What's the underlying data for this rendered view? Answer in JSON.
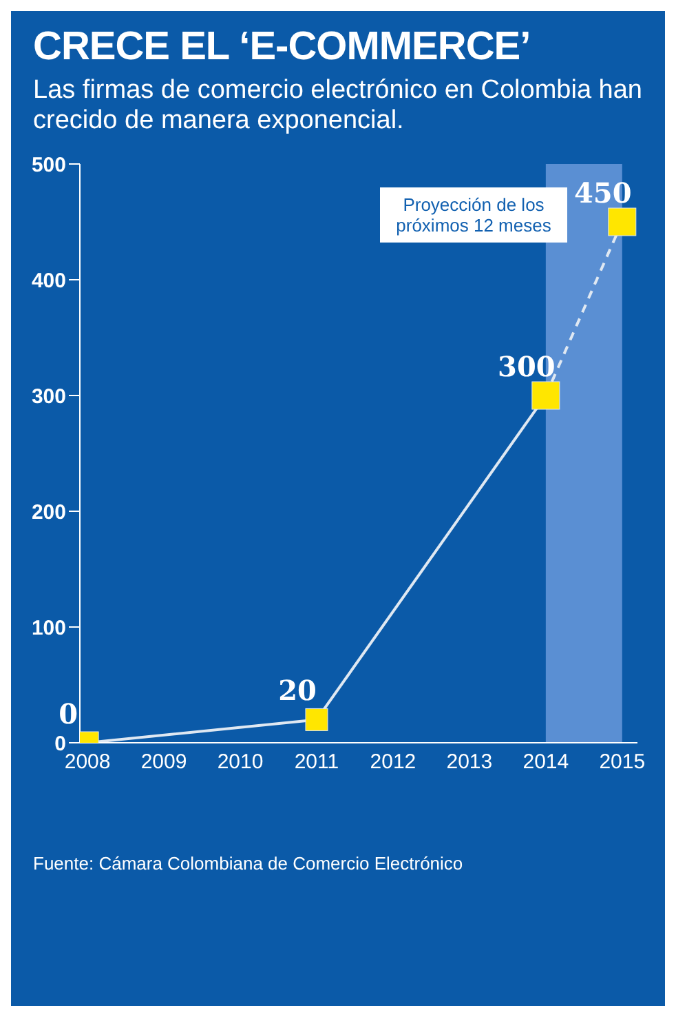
{
  "chart_data": {
    "type": "line",
    "title": "CRECE EL ‘E-COMMERCE’",
    "subtitle": "Las firmas de comercio electrónico en Colombia han crecido de manera exponencial.",
    "series": [
      {
        "x": [
          2008,
          2011,
          2014
        ],
        "values": [
          0,
          20,
          300
        ],
        "color": "#dfe8f2",
        "line_style": "solid"
      },
      {
        "x": [
          2014,
          2015
        ],
        "values": [
          300,
          450
        ],
        "color": "#dfe8f2",
        "line_style": "dashed",
        "value_labels": [
          null,
          "450"
        ]
      }
    ],
    "xlim": [
      2007.9,
      2015.2
    ],
    "xticks": [
      2008,
      2009,
      2010,
      2011,
      2012,
      2013,
      2014,
      2015
    ],
    "ylim": [
      0,
      500
    ],
    "yticks": [
      0,
      100,
      200,
      300,
      400,
      500
    ],
    "bands": [
      {
        "axis": "x",
        "from": 2014,
        "to": 2015,
        "color": "#5a8fd3"
      }
    ],
    "annotations": [
      "Proyección de los próximos 12 meses",
      "Fuente: Cámara Colombiana de Comercio Electrónico"
    ],
    "marker": "square",
    "grid": false,
    "legend": false,
    "data_labels": true
  }
}
